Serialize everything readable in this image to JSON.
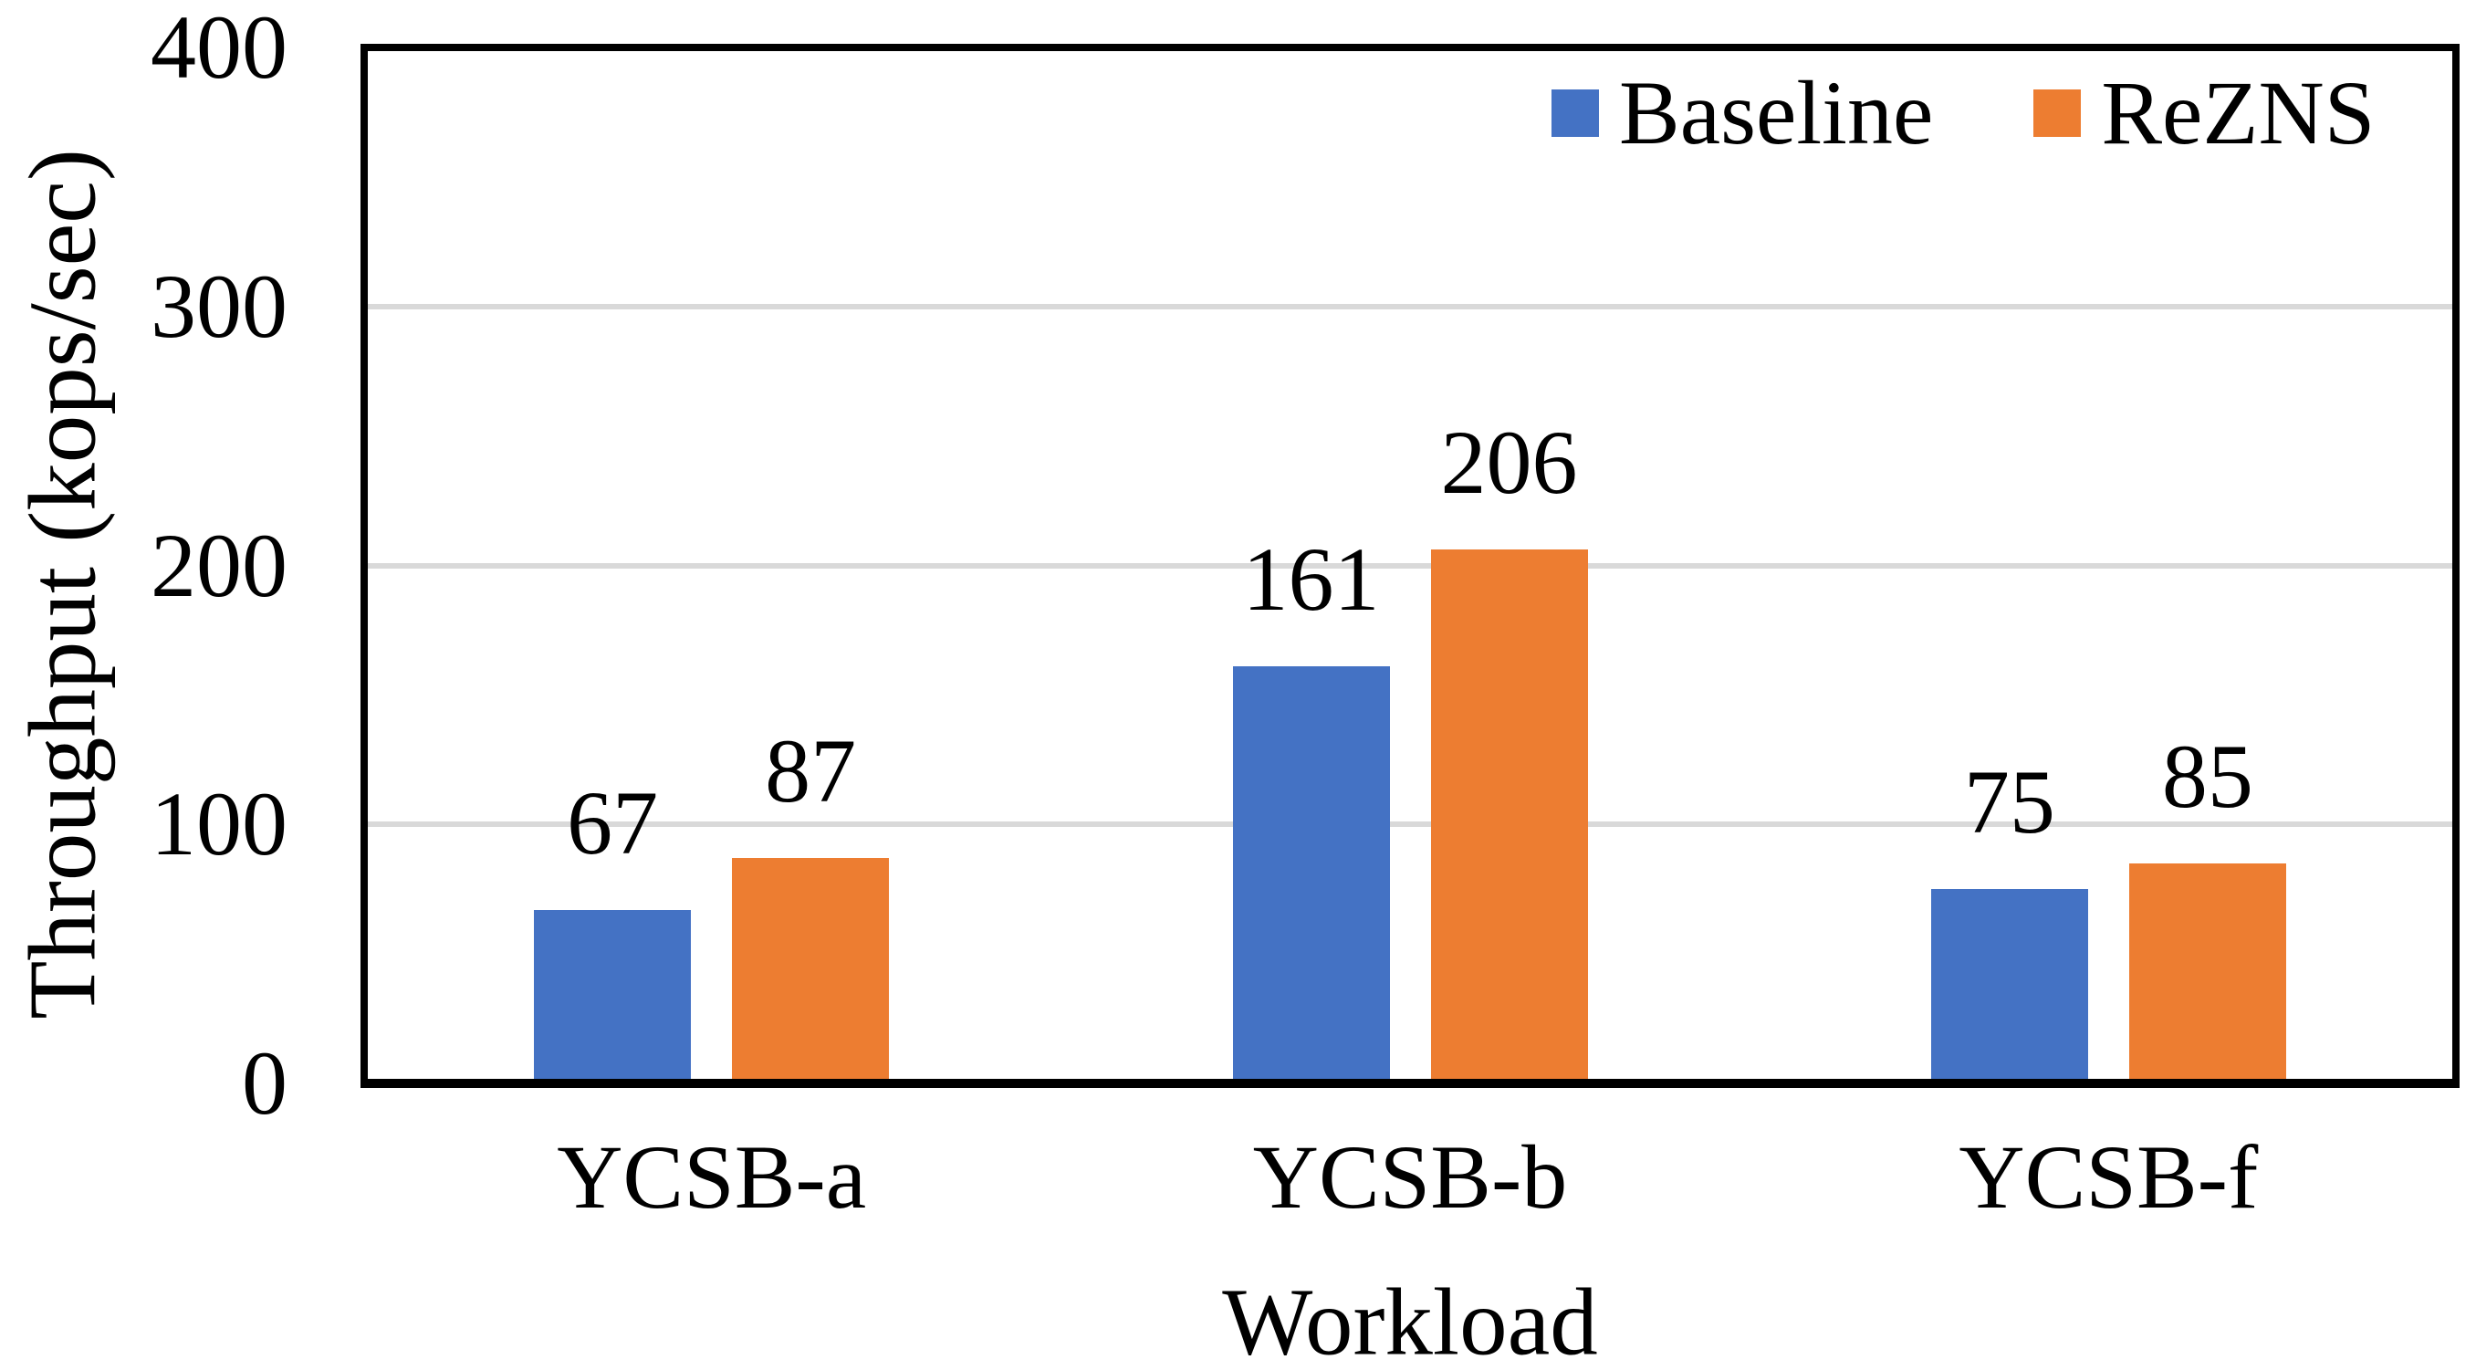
{
  "chart_data": {
    "type": "bar",
    "title": "",
    "xlabel": "Workload",
    "ylabel": "Throughput (kops/sec)",
    "categories": [
      "YCSB-a",
      "YCSB-b",
      "YCSB-f"
    ],
    "series": [
      {
        "name": "Baseline",
        "color": "#4472C4",
        "values": [
          67,
          161,
          75
        ]
      },
      {
        "name": "ReZNS",
        "color": "#ED7D31",
        "values": [
          87,
          206,
          85
        ]
      }
    ],
    "value_labels": {
      "Baseline": [
        "67",
        "161",
        "75"
      ],
      "ReZNS": [
        "87",
        "206",
        "85"
      ]
    },
    "ylim": [
      0,
      400
    ],
    "yticks": [
      0,
      100,
      200,
      300,
      400
    ],
    "grid": true,
    "gridline_color": "#D9D9D9",
    "axis_color": "#000000",
    "text_color": "#000000",
    "background_color": "#FFFFFF",
    "legend_position": "top-right-inside"
  }
}
